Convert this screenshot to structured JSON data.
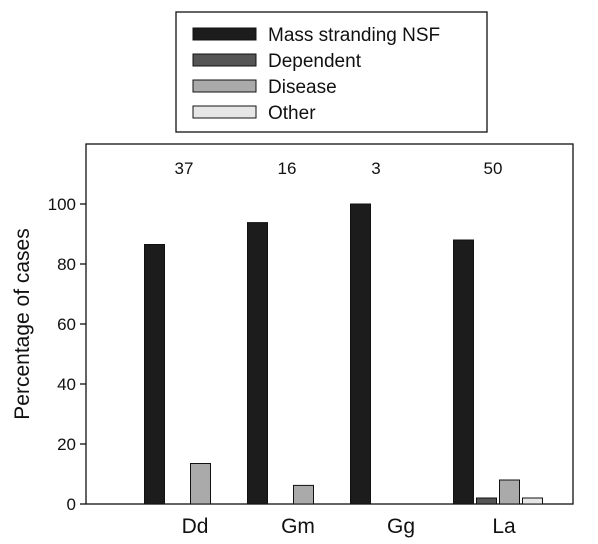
{
  "chart_data": {
    "type": "bar",
    "categories": [
      "Dd",
      "Gm",
      "Gg",
      "La"
    ],
    "annotations": [
      "37",
      "16",
      "3",
      "50"
    ],
    "series": [
      {
        "name": "Mass stranding NSF",
        "color": "#1c1c1c",
        "values": [
          86.5,
          93.8,
          100,
          88
        ]
      },
      {
        "name": "Dependent",
        "color": "#555555",
        "values": [
          0,
          0,
          0,
          2
        ]
      },
      {
        "name": "Disease",
        "color": "#aaaaaa",
        "values": [
          13.5,
          6.2,
          0,
          8
        ]
      },
      {
        "name": "Other",
        "color": "#e6e6e6",
        "values": [
          0,
          0,
          0,
          2
        ]
      }
    ],
    "ylabel": "Percentage of cases",
    "xlabel": "",
    "ylim": [
      0,
      120
    ],
    "yticks": [
      0,
      20,
      40,
      60,
      80,
      100
    ],
    "grid": false,
    "legend_position": "top-center"
  }
}
